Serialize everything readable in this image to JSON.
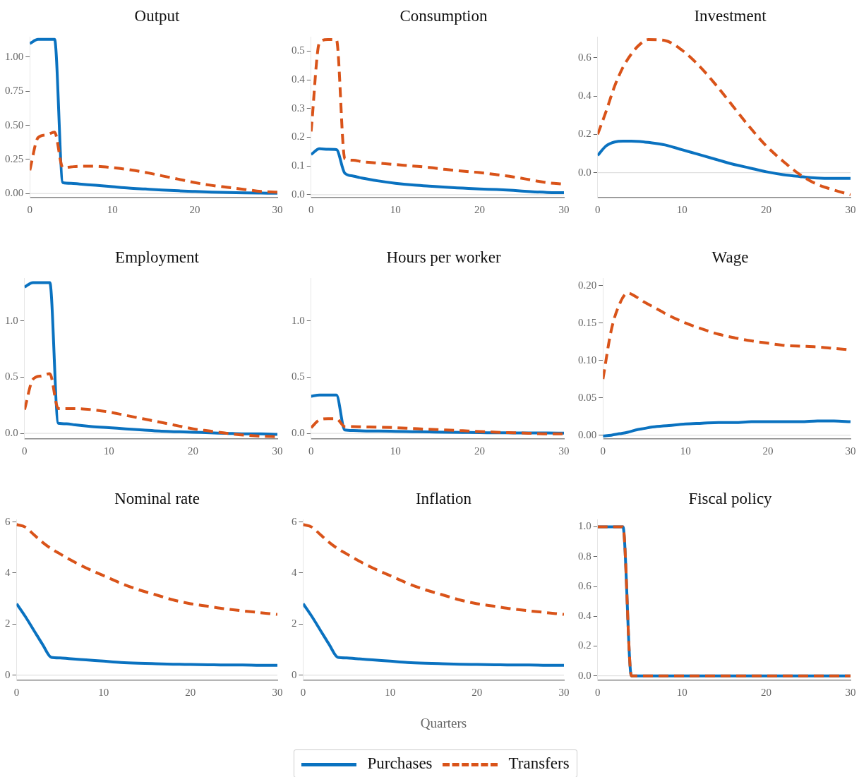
{
  "chart_data": [
    {
      "type": "line",
      "title": "Output",
      "x": [
        0,
        1,
        2,
        3,
        4,
        5,
        6,
        8,
        10,
        12,
        14,
        16,
        18,
        20,
        22,
        24,
        26,
        28,
        30
      ],
      "xlim": [
        0,
        30
      ],
      "xticks": [
        0,
        10,
        20,
        30
      ],
      "ylim": [
        -0.03,
        1.15
      ],
      "yticks": [
        {
          "value": 0,
          "label": "0.00"
        },
        {
          "value": 0.25,
          "label": "0.25"
        },
        {
          "value": 0.5,
          "label": "0.50"
        },
        {
          "value": 0.75,
          "label": "0.75"
        },
        {
          "value": 1,
          "label": "1.00"
        }
      ],
      "ref_lines": [
        {
          "axis": "y",
          "value": 0,
          "color": "#d9d9d9"
        }
      ],
      "series": [
        {
          "color": "#0a72c0",
          "line_style": "solid",
          "values": [
            1.1,
            1.13,
            1.13,
            1.13,
            0.08,
            0.075,
            0.07,
            0.06,
            0.05,
            0.04,
            0.033,
            0.026,
            0.02,
            0.015,
            0.01,
            0.007,
            0.005,
            0.003,
            0.002
          ]
        },
        {
          "color": "#d95319",
          "line_style": "dashed",
          "values": [
            0.17,
            0.41,
            0.43,
            0.45,
            0.19,
            0.195,
            0.2,
            0.2,
            0.19,
            0.175,
            0.155,
            0.13,
            0.105,
            0.08,
            0.06,
            0.045,
            0.03,
            0.015,
            0.01
          ]
        }
      ]
    },
    {
      "type": "line",
      "title": "Consumption",
      "x": [
        0,
        1,
        2,
        3,
        4,
        5,
        6,
        8,
        10,
        12,
        14,
        16,
        18,
        20,
        22,
        24,
        26,
        28,
        30
      ],
      "xlim": [
        0,
        30
      ],
      "xticks": [
        0,
        10,
        20,
        30
      ],
      "ylim": [
        -0.01,
        0.55
      ],
      "yticks": [
        {
          "value": 0,
          "label": "0.0"
        },
        0.1,
        0.2,
        0.3,
        0.4,
        0.5
      ],
      "ref_lines": [
        {
          "axis": "y",
          "value": 0,
          "color": "#d9d9d9"
        }
      ],
      "series": [
        {
          "color": "#0a72c0",
          "line_style": "solid",
          "values": [
            0.14,
            0.16,
            0.158,
            0.157,
            0.075,
            0.065,
            0.058,
            0.048,
            0.04,
            0.034,
            0.03,
            0.026,
            0.023,
            0.02,
            0.018,
            0.015,
            0.011,
            0.008,
            0.007
          ]
        },
        {
          "color": "#d95319",
          "line_style": "dashed",
          "values": [
            0.22,
            0.53,
            0.54,
            0.54,
            0.125,
            0.12,
            0.115,
            0.11,
            0.105,
            0.1,
            0.095,
            0.088,
            0.082,
            0.077,
            0.07,
            0.062,
            0.052,
            0.042,
            0.037
          ]
        }
      ]
    },
    {
      "type": "line",
      "title": "Investment",
      "x": [
        0,
        1,
        2,
        3,
        4,
        5,
        6,
        8,
        10,
        12,
        14,
        16,
        18,
        20,
        22,
        24,
        26,
        28,
        30
      ],
      "xlim": [
        0,
        30
      ],
      "xticks": [
        0,
        10,
        20,
        30
      ],
      "ylim": [
        -0.13,
        0.71
      ],
      "yticks": [
        {
          "value": 0,
          "label": "0.0"
        },
        0.2,
        0.4,
        0.6
      ],
      "ref_lines": [
        {
          "axis": "y",
          "value": 0,
          "color": "#d9d9d9"
        }
      ],
      "series": [
        {
          "color": "#0a72c0",
          "line_style": "solid",
          "values": [
            0.09,
            0.14,
            0.16,
            0.165,
            0.165,
            0.163,
            0.158,
            0.145,
            0.12,
            0.095,
            0.07,
            0.045,
            0.025,
            0.005,
            -0.01,
            -0.02,
            -0.028,
            -0.03,
            -0.03
          ]
        },
        {
          "color": "#d95319",
          "line_style": "dashed",
          "values": [
            0.2,
            0.32,
            0.45,
            0.55,
            0.62,
            0.67,
            0.695,
            0.69,
            0.64,
            0.56,
            0.46,
            0.35,
            0.24,
            0.14,
            0.06,
            -0.01,
            -0.06,
            -0.09,
            -0.115
          ]
        }
      ]
    },
    {
      "type": "line",
      "title": "Employment",
      "x": [
        0,
        1,
        2,
        3,
        4,
        5,
        6,
        8,
        10,
        12,
        14,
        16,
        18,
        20,
        22,
        24,
        26,
        28,
        30
      ],
      "xlim": [
        0,
        30
      ],
      "xticks": [
        0,
        10,
        20,
        30
      ],
      "ylim": [
        -0.05,
        1.38
      ],
      "yticks": [
        {
          "value": 0,
          "label": "0.0"
        },
        0.5,
        {
          "value": 1,
          "label": "1.0"
        }
      ],
      "ref_lines": [
        {
          "axis": "y",
          "value": 0,
          "color": "#d9d9d9"
        }
      ],
      "series": [
        {
          "color": "#0a72c0",
          "line_style": "solid",
          "values": [
            1.3,
            1.34,
            1.34,
            1.34,
            0.09,
            0.085,
            0.075,
            0.06,
            0.05,
            0.04,
            0.03,
            0.02,
            0.015,
            0.01,
            0.005,
            0.0,
            -0.005,
            -0.005,
            -0.01
          ]
        },
        {
          "color": "#d95319",
          "line_style": "dashed",
          "values": [
            0.21,
            0.48,
            0.51,
            0.53,
            0.22,
            0.22,
            0.22,
            0.21,
            0.19,
            0.16,
            0.13,
            0.1,
            0.07,
            0.04,
            0.02,
            0.0,
            -0.015,
            -0.025,
            -0.03
          ]
        }
      ]
    },
    {
      "type": "line",
      "title": "Hours per worker",
      "x": [
        0,
        1,
        2,
        3,
        4,
        5,
        6,
        8,
        10,
        12,
        14,
        16,
        18,
        20,
        22,
        24,
        26,
        28,
        30
      ],
      "xlim": [
        0,
        30
      ],
      "xticks": [
        0,
        10,
        20,
        30
      ],
      "ylim": [
        -0.05,
        1.38
      ],
      "yticks": [
        {
          "value": 0,
          "label": "0.0"
        },
        0.5,
        {
          "value": 1,
          "label": "1.0"
        }
      ],
      "ref_lines": [
        {
          "axis": "y",
          "value": 0,
          "color": "#d9d9d9"
        }
      ],
      "series": [
        {
          "color": "#0a72c0",
          "line_style": "solid",
          "values": [
            0.33,
            0.34,
            0.34,
            0.34,
            0.03,
            0.025,
            0.022,
            0.02,
            0.018,
            0.015,
            0.012,
            0.01,
            0.008,
            0.006,
            0.005,
            0.004,
            0.003,
            0.003,
            0.002
          ]
        },
        {
          "color": "#d95319",
          "line_style": "dashed",
          "values": [
            0.05,
            0.12,
            0.13,
            0.13,
            0.06,
            0.06,
            0.058,
            0.055,
            0.05,
            0.043,
            0.036,
            0.03,
            0.023,
            0.016,
            0.01,
            0.005,
            0.0,
            -0.005,
            -0.005
          ]
        }
      ]
    },
    {
      "type": "line",
      "title": "Wage",
      "x": [
        0,
        1,
        2,
        3,
        4,
        5,
        6,
        8,
        10,
        12,
        14,
        16,
        18,
        20,
        22,
        24,
        26,
        28,
        30
      ],
      "xlim": [
        0,
        30
      ],
      "xticks": [
        0,
        10,
        20,
        30
      ],
      "ylim": [
        -0.005,
        0.21
      ],
      "yticks": [
        {
          "value": 0,
          "label": "0.00"
        },
        0.05,
        {
          "value": 0.1,
          "label": "0.10"
        },
        0.15,
        {
          "value": 0.2,
          "label": "0.20"
        }
      ],
      "ref_lines": [
        {
          "axis": "y",
          "value": 0,
          "color": "#d9d9d9"
        }
      ],
      "series": [
        {
          "color": "#0a72c0",
          "line_style": "solid",
          "values": [
            -0.001,
            0.0,
            0.002,
            0.004,
            0.007,
            0.009,
            0.011,
            0.013,
            0.015,
            0.016,
            0.017,
            0.017,
            0.018,
            0.018,
            0.018,
            0.018,
            0.019,
            0.019,
            0.018
          ]
        },
        {
          "color": "#d95319",
          "line_style": "dashed",
          "values": [
            0.075,
            0.14,
            0.175,
            0.19,
            0.185,
            0.178,
            0.172,
            0.16,
            0.15,
            0.142,
            0.135,
            0.13,
            0.126,
            0.123,
            0.12,
            0.119,
            0.118,
            0.116,
            0.114
          ]
        }
      ]
    },
    {
      "type": "line",
      "title": "Nominal rate",
      "x": [
        0,
        1,
        2,
        3,
        4,
        5,
        6,
        8,
        10,
        12,
        14,
        16,
        18,
        20,
        22,
        24,
        26,
        28,
        30
      ],
      "xlim": [
        0,
        30
      ],
      "xticks": [
        0,
        10,
        20,
        30
      ],
      "ylim": [
        -0.2,
        6.1
      ],
      "yticks": [
        0,
        2,
        4,
        6
      ],
      "ref_lines": [
        {
          "axis": "y",
          "value": 0,
          "color": "#d9d9d9"
        }
      ],
      "series": [
        {
          "color": "#0a72c0",
          "line_style": "solid",
          "values": [
            2.8,
            2.3,
            1.75,
            1.2,
            0.7,
            0.68,
            0.65,
            0.6,
            0.55,
            0.5,
            0.47,
            0.45,
            0.43,
            0.42,
            0.41,
            0.4,
            0.4,
            0.39,
            0.39
          ]
        },
        {
          "color": "#d95319",
          "line_style": "dashed",
          "values": [
            5.9,
            5.8,
            5.5,
            5.2,
            4.95,
            4.75,
            4.55,
            4.2,
            3.9,
            3.6,
            3.35,
            3.15,
            2.95,
            2.8,
            2.7,
            2.6,
            2.52,
            2.45,
            2.38
          ]
        }
      ]
    },
    {
      "type": "line",
      "title": "Inflation",
      "xlabel": "Quarters",
      "legend": "bottom",
      "x": [
        0,
        1,
        2,
        3,
        4,
        5,
        6,
        8,
        10,
        12,
        14,
        16,
        18,
        20,
        22,
        24,
        26,
        28,
        30
      ],
      "xlim": [
        0,
        30
      ],
      "xticks": [
        0,
        10,
        20,
        30
      ],
      "ylim": [
        -0.2,
        6.1
      ],
      "yticks": [
        0,
        2,
        4,
        6
      ],
      "ref_lines": [
        {
          "axis": "y",
          "value": 0,
          "color": "#d9d9d9"
        }
      ],
      "series": [
        {
          "name": "Purchases",
          "color": "#0a72c0",
          "line_style": "solid",
          "values": [
            2.8,
            2.3,
            1.75,
            1.2,
            0.7,
            0.68,
            0.65,
            0.6,
            0.55,
            0.5,
            0.47,
            0.45,
            0.43,
            0.42,
            0.41,
            0.4,
            0.4,
            0.39,
            0.39
          ]
        },
        {
          "name": "Transfers",
          "color": "#d95319",
          "line_style": "dashed",
          "values": [
            5.9,
            5.8,
            5.5,
            5.2,
            4.95,
            4.75,
            4.55,
            4.2,
            3.9,
            3.6,
            3.35,
            3.15,
            2.95,
            2.8,
            2.7,
            2.6,
            2.52,
            2.45,
            2.38
          ]
        }
      ]
    },
    {
      "type": "line",
      "title": "Fiscal policy",
      "x": [
        0,
        1,
        2,
        3,
        4,
        5,
        6,
        8,
        10,
        12,
        14,
        16,
        18,
        20,
        22,
        24,
        26,
        28,
        30
      ],
      "xlim": [
        0,
        30
      ],
      "xticks": [
        0,
        10,
        20,
        30
      ],
      "ylim": [
        -0.03,
        1.05
      ],
      "yticks": [
        {
          "value": 0,
          "label": "0.0"
        },
        0.2,
        0.4,
        0.6,
        0.8,
        {
          "value": 1,
          "label": "1.0"
        }
      ],
      "ref_lines": [
        {
          "axis": "y",
          "value": 0,
          "color": "#d9d9d9"
        }
      ],
      "series": [
        {
          "color": "#0a72c0",
          "line_style": "solid",
          "values": [
            1,
            1,
            1,
            1,
            0,
            0,
            0,
            0,
            0,
            0,
            0,
            0,
            0,
            0,
            0,
            0,
            0,
            0,
            0
          ]
        },
        {
          "color": "#d95319",
          "line_style": "dashed",
          "values": [
            1,
            1,
            1,
            1,
            0,
            0,
            0,
            0,
            0,
            0,
            0,
            0,
            0,
            0,
            0,
            0,
            0,
            0,
            0
          ]
        }
      ]
    }
  ]
}
